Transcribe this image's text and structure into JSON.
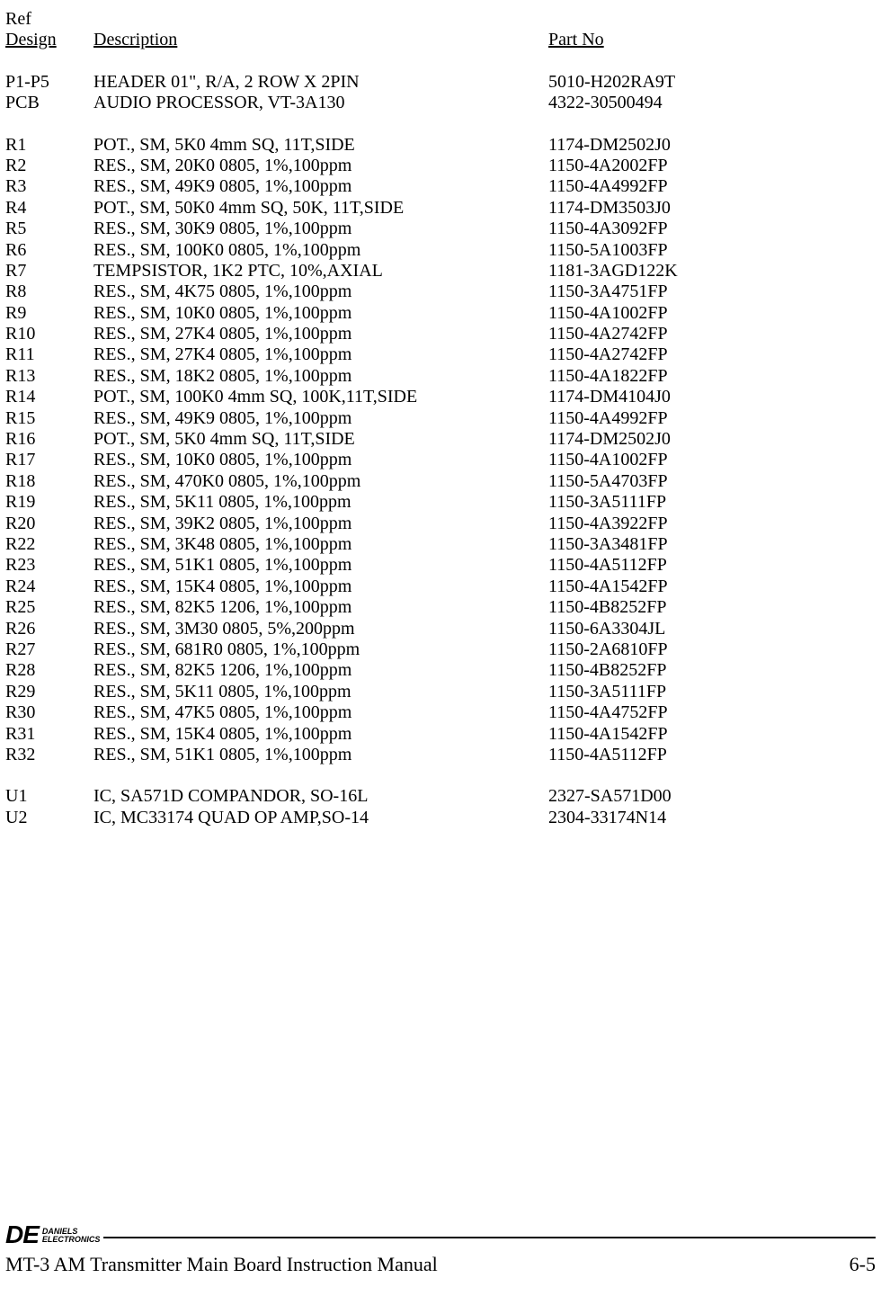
{
  "header": {
    "ref1": "Ref",
    "ref2": "Design",
    "desc": "Description",
    "part": "Part No"
  },
  "rows": [
    {
      "r": "P1-P5",
      "d": "HEADER 01\",  R/A,  2 ROW X 2PIN",
      "p": "5010-H202RA9T"
    },
    {
      "r": "PCB",
      "d": "AUDIO PROCESSOR, VT-3A130",
      "p": "4322-30500494"
    },
    {
      "blank": true
    },
    {
      "r": "R1",
      "d": "POT., SM, 5K0 4mm SQ, 11T,SIDE",
      "p": "1174-DM2502J0"
    },
    {
      "r": "R2",
      "d": "RES., SM, 20K0 0805, 1%,100ppm",
      "p": "1150-4A2002FP"
    },
    {
      "r": "R3",
      "d": "RES., SM, 49K9 0805, 1%,100ppm",
      "p": "1150-4A4992FP"
    },
    {
      "r": "R4",
      "d": "POT., SM, 50K0 4mm SQ, 50K, 11T,SIDE",
      "p": "1174-DM3503J0"
    },
    {
      "r": "R5",
      "d": "RES., SM, 30K9 0805, 1%,100ppm",
      "p": "1150-4A3092FP"
    },
    {
      "r": "R6",
      "d": "RES., SM, 100K0 0805, 1%,100ppm",
      "p": "1150-5A1003FP"
    },
    {
      "r": "R7",
      "d": "TEMPSISTOR, 1K2 PTC, 10%,AXIAL",
      "p": "1181-3AGD122K"
    },
    {
      "r": "R8",
      "d": "RES., SM, 4K75 0805, 1%,100ppm",
      "p": "1150-3A4751FP"
    },
    {
      "r": "R9",
      "d": "RES., SM, 10K0 0805, 1%,100ppm",
      "p": "1150-4A1002FP"
    },
    {
      "r": "R10",
      "d": "RES., SM, 27K4 0805, 1%,100ppm",
      "p": "1150-4A2742FP"
    },
    {
      "r": "R11",
      "d": "RES., SM, 27K4 0805, 1%,100ppm",
      "p": "1150-4A2742FP"
    },
    {
      "r": "R13",
      "d": "RES., SM, 18K2 0805, 1%,100ppm",
      "p": "1150-4A1822FP"
    },
    {
      "r": "R14",
      "d": "POT., SM, 100K0 4mm SQ, 100K,11T,SIDE",
      "p": "1174-DM4104J0"
    },
    {
      "r": "R15",
      "d": "RES., SM, 49K9 0805, 1%,100ppm",
      "p": "1150-4A4992FP"
    },
    {
      "r": "R16",
      "d": "POT., SM, 5K0 4mm SQ, 11T,SIDE",
      "p": "1174-DM2502J0"
    },
    {
      "r": "R17",
      "d": "RES., SM, 10K0 0805, 1%,100ppm",
      "p": "1150-4A1002FP"
    },
    {
      "r": "R18",
      "d": "RES., SM, 470K0 0805, 1%,100ppm",
      "p": "1150-5A4703FP"
    },
    {
      "r": "R19",
      "d": "RES., SM, 5K11 0805, 1%,100ppm",
      "p": "1150-3A5111FP"
    },
    {
      "r": "R20",
      "d": "RES., SM, 39K2 0805, 1%,100ppm",
      "p": "1150-4A3922FP"
    },
    {
      "r": "R22",
      "d": "RES., SM, 3K48 0805, 1%,100ppm",
      "p": "1150-3A3481FP"
    },
    {
      "r": "R23",
      "d": "RES., SM, 51K1 0805, 1%,100ppm",
      "p": "1150-4A5112FP"
    },
    {
      "r": "R24",
      "d": "RES., SM, 15K4 0805, 1%,100ppm",
      "p": "1150-4A1542FP"
    },
    {
      "r": "R25",
      "d": "RES., SM, 82K5 1206, 1%,100ppm",
      "p": "1150-4B8252FP"
    },
    {
      "r": "R26",
      "d": "RES., SM, 3M30 0805, 5%,200ppm",
      "p": "1150-6A3304JL"
    },
    {
      "r": "R27",
      "d": "RES., SM, 681R0 0805, 1%,100ppm",
      "p": "1150-2A6810FP"
    },
    {
      "r": "R28",
      "d": "RES., SM, 82K5 1206, 1%,100ppm",
      "p": "1150-4B8252FP"
    },
    {
      "r": "R29",
      "d": "RES., SM, 5K11 0805, 1%,100ppm",
      "p": "1150-3A5111FP"
    },
    {
      "r": "R30",
      "d": "RES., SM, 47K5 0805, 1%,100ppm",
      "p": "1150-4A4752FP"
    },
    {
      "r": "R31",
      "d": "RES., SM, 15K4 0805, 1%,100ppm",
      "p": "1150-4A1542FP"
    },
    {
      "r": "R32",
      "d": "RES., SM, 51K1 0805, 1%,100ppm",
      "p": "1150-4A5112FP"
    },
    {
      "blank": true
    },
    {
      "r": "U1",
      "d": "IC, SA571D COMPANDOR, SO-16L",
      "p": "2327-SA571D00"
    },
    {
      "r": "U2",
      "d": "IC, MC33174 QUAD OP AMP,SO-14",
      "p": "2304-33174N14"
    }
  ],
  "footer": {
    "logo_de": "DE",
    "logo_line1": "DANIELS",
    "logo_line2": "ELECTRONICS",
    "title": "MT-3 AM Transmitter Main Board Instruction Manual",
    "page": "6-5"
  }
}
